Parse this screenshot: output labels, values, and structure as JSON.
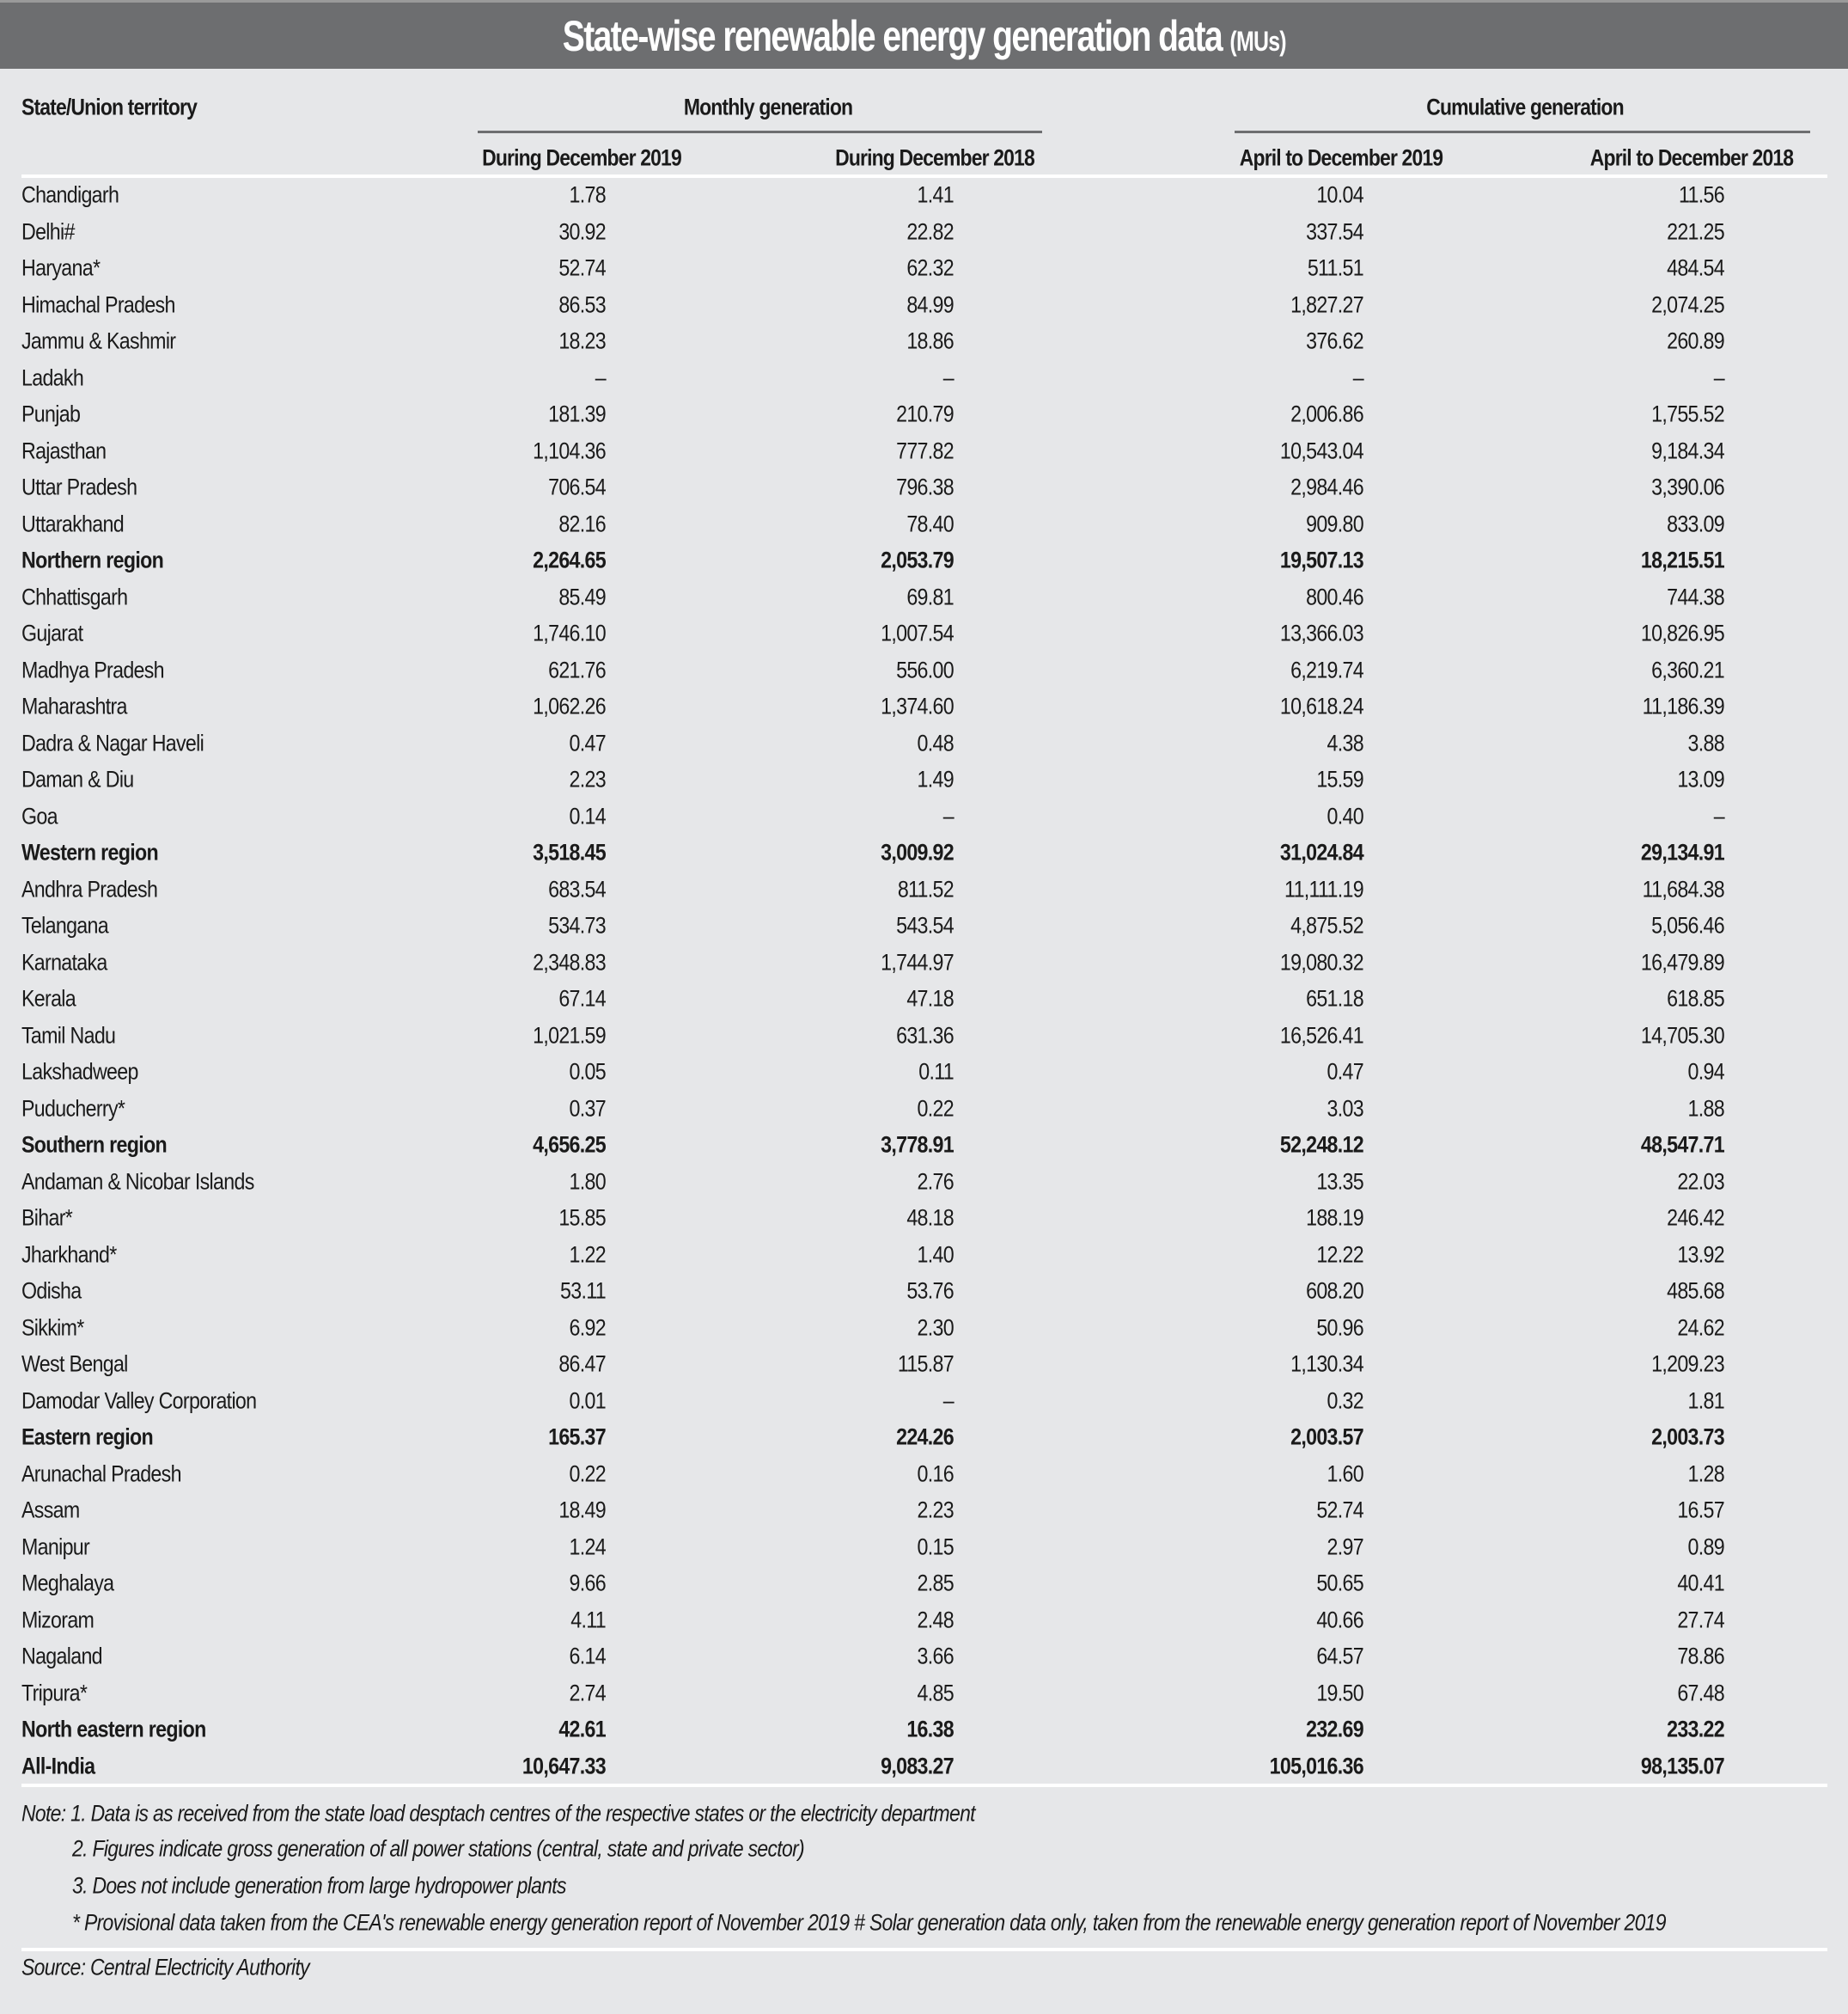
{
  "title": {
    "main": "State-wise renewable energy generation data",
    "unit": "(MUs)"
  },
  "colors": {
    "title_bar": "#6d6e70",
    "background": "#e6e7e9"
  },
  "headers": {
    "state": "State/Union territory",
    "monthly": "Monthly generation",
    "cumulative": "Cumulative generation",
    "cols": [
      "During December 2019",
      "During December 2018",
      "April to December 2019",
      "April to December 2018"
    ]
  },
  "rows": [
    {
      "name": "Chandigarh",
      "v": [
        "1.78",
        "1.41",
        "10.04",
        "11.56"
      ]
    },
    {
      "name": "Delhi#",
      "v": [
        "30.92",
        "22.82",
        "337.54",
        "221.25"
      ]
    },
    {
      "name": "Haryana*",
      "v": [
        "52.74",
        "62.32",
        "511.51",
        "484.54"
      ]
    },
    {
      "name": "Himachal Pradesh",
      "v": [
        "86.53",
        "84.99",
        "1,827.27",
        "2,074.25"
      ]
    },
    {
      "name": "Jammu & Kashmir",
      "v": [
        "18.23",
        "18.86",
        "376.62",
        "260.89"
      ]
    },
    {
      "name": "Ladakh",
      "v": [
        "–",
        "–",
        "–",
        "–"
      ]
    },
    {
      "name": "Punjab",
      "v": [
        "181.39",
        "210.79",
        "2,006.86",
        "1,755.52"
      ]
    },
    {
      "name": "Rajasthan",
      "v": [
        "1,104.36",
        "777.82",
        "10,543.04",
        "9,184.34"
      ]
    },
    {
      "name": "Uttar Pradesh",
      "v": [
        "706.54",
        "796.38",
        "2,984.46",
        "3,390.06"
      ]
    },
    {
      "name": "Uttarakhand",
      "v": [
        "82.16",
        "78.40",
        "909.80",
        "833.09"
      ]
    },
    {
      "name": "Northern region",
      "bold": true,
      "v": [
        "2,264.65",
        "2,053.79",
        "19,507.13",
        "18,215.51"
      ]
    },
    {
      "name": "Chhattisgarh",
      "v": [
        "85.49",
        "69.81",
        "800.46",
        "744.38"
      ]
    },
    {
      "name": "Gujarat",
      "v": [
        "1,746.10",
        "1,007.54",
        "13,366.03",
        "10,826.95"
      ]
    },
    {
      "name": "Madhya Pradesh",
      "v": [
        "621.76",
        "556.00",
        "6,219.74",
        "6,360.21"
      ]
    },
    {
      "name": "Maharashtra",
      "v": [
        "1,062.26",
        "1,374.60",
        "10,618.24",
        "11,186.39"
      ]
    },
    {
      "name": "Dadra & Nagar Haveli",
      "v": [
        "0.47",
        "0.48",
        "4.38",
        "3.88"
      ]
    },
    {
      "name": "Daman & Diu",
      "v": [
        "2.23",
        "1.49",
        "15.59",
        "13.09"
      ]
    },
    {
      "name": "Goa",
      "v": [
        "0.14",
        "–",
        "0.40",
        "–"
      ]
    },
    {
      "name": "Western region",
      "bold": true,
      "v": [
        "3,518.45",
        "3,009.92",
        "31,024.84",
        "29,134.91"
      ]
    },
    {
      "name": "Andhra Pradesh",
      "v": [
        "683.54",
        "811.52",
        "11,111.19",
        "11,684.38"
      ]
    },
    {
      "name": "Telangana",
      "v": [
        "534.73",
        "543.54",
        "4,875.52",
        "5,056.46"
      ]
    },
    {
      "name": "Karnataka",
      "v": [
        "2,348.83",
        "1,744.97",
        "19,080.32",
        "16,479.89"
      ]
    },
    {
      "name": "Kerala",
      "v": [
        "67.14",
        "47.18",
        "651.18",
        "618.85"
      ]
    },
    {
      "name": "Tamil Nadu",
      "v": [
        "1,021.59",
        "631.36",
        "16,526.41",
        "14,705.30"
      ]
    },
    {
      "name": "Lakshadweep",
      "v": [
        "0.05",
        "0.11",
        "0.47",
        "0.94"
      ]
    },
    {
      "name": "Puducherry*",
      "v": [
        "0.37",
        "0.22",
        "3.03",
        "1.88"
      ]
    },
    {
      "name": "Southern region",
      "bold": true,
      "v": [
        "4,656.25",
        "3,778.91",
        "52,248.12",
        "48,547.71"
      ]
    },
    {
      "name": "Andaman & Nicobar Islands",
      "v": [
        "1.80",
        "2.76",
        "13.35",
        "22.03"
      ]
    },
    {
      "name": "Bihar*",
      "v": [
        "15.85",
        "48.18",
        "188.19",
        "246.42"
      ]
    },
    {
      "name": "Jharkhand*",
      "v": [
        "1.22",
        "1.40",
        "12.22",
        "13.92"
      ]
    },
    {
      "name": "Odisha",
      "v": [
        "53.11",
        "53.76",
        "608.20",
        "485.68"
      ]
    },
    {
      "name": "Sikkim*",
      "v": [
        "6.92",
        "2.30",
        "50.96",
        "24.62"
      ]
    },
    {
      "name": "West Bengal",
      "v": [
        "86.47",
        "115.87",
        "1,130.34",
        "1,209.23"
      ]
    },
    {
      "name": "Damodar Valley Corporation",
      "v": [
        "0.01",
        "–",
        "0.32",
        "1.81"
      ]
    },
    {
      "name": "Eastern region",
      "bold": true,
      "v": [
        "165.37",
        "224.26",
        "2,003.57",
        "2,003.73"
      ]
    },
    {
      "name": "Arunachal Pradesh",
      "v": [
        "0.22",
        "0.16",
        "1.60",
        "1.28"
      ]
    },
    {
      "name": "Assam",
      "v": [
        "18.49",
        "2.23",
        "52.74",
        "16.57"
      ]
    },
    {
      "name": "Manipur",
      "v": [
        "1.24",
        "0.15",
        "2.97",
        "0.89"
      ]
    },
    {
      "name": "Meghalaya",
      "v": [
        "9.66",
        "2.85",
        "50.65",
        "40.41"
      ]
    },
    {
      "name": "Mizoram",
      "v": [
        "4.11",
        "2.48",
        "40.66",
        "27.74"
      ]
    },
    {
      "name": "Nagaland",
      "v": [
        "6.14",
        "3.66",
        "64.57",
        "78.86"
      ]
    },
    {
      "name": "Tripura*",
      "v": [
        "2.74",
        "4.85",
        "19.50",
        "67.48"
      ]
    },
    {
      "name": "North eastern region",
      "bold": true,
      "v": [
        "42.61",
        "16.38",
        "232.69",
        "233.22"
      ]
    },
    {
      "name": "All-India",
      "bold": true,
      "v": [
        "10,647.33",
        "9,083.27",
        "105,016.36",
        "98,135.07"
      ]
    }
  ],
  "notes": [
    "Note: 1. Data is as received from the state load desptach centres of the respective states or the electricity department",
    "2. Figures indicate gross generation of all power stations (central, state and private sector)",
    "3. Does not include generation from large hydropower plants",
    "* Provisional data taken from the CEA's renewable energy generation report of November 2019 # Solar generation data only, taken from the renewable energy generation report of November 2019"
  ],
  "source": "Source: Central Electricity Authority"
}
